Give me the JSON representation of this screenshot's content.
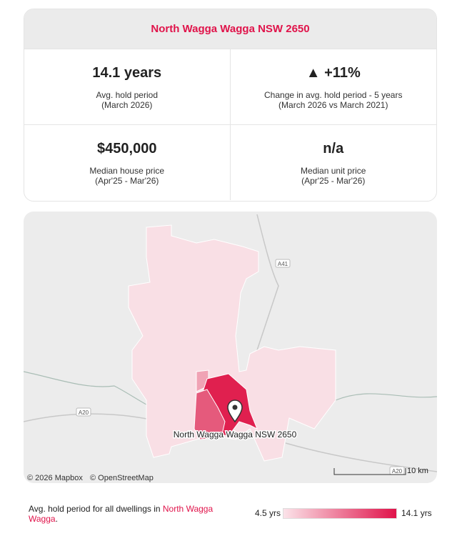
{
  "header": {
    "title": "North Wagga Wagga NSW 2650"
  },
  "stats": [
    {
      "value": "14.1 years",
      "label": "Avg. hold period",
      "sublabel": "(March 2026)"
    },
    {
      "value": "▲ +11%",
      "label": "Change in avg. hold period - 5 years",
      "sublabel": "(March 2026 vs March 2021)"
    },
    {
      "value": "$450,000",
      "label": "Median house price",
      "sublabel": "(Apr'25 - Mar'26)"
    },
    {
      "value": "n/a",
      "label": "Median unit price",
      "sublabel": "(Apr'25 - Mar'26)"
    }
  ],
  "map": {
    "place_label": "North Wagga Wagga NSW 2650",
    "roads": [
      "A41",
      "A20",
      "A20"
    ],
    "attribution": [
      "© 2026 Mapbox",
      "© OpenStreetMap"
    ],
    "scale": "10 km"
  },
  "legend": {
    "text": "Avg. hold period for all dwellings in ",
    "highlight": "North Wagga Wagga",
    "end": ".",
    "min_label": "4.5 yrs",
    "max_label": "14.1 yrs"
  }
}
